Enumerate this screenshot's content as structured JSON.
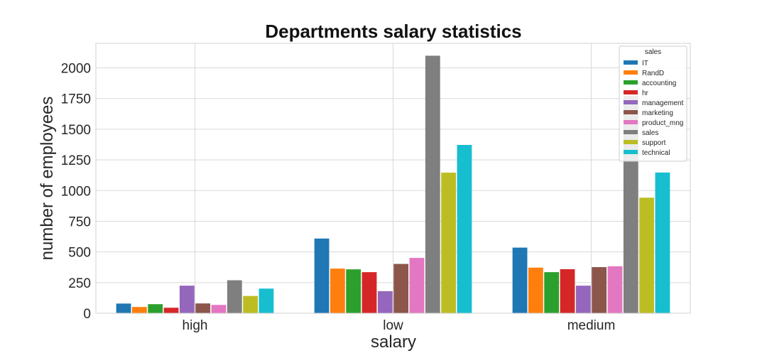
{
  "chart_data": {
    "type": "bar",
    "title": "Departments salary statistics",
    "xlabel": "salary",
    "ylabel": "number of employees",
    "categories": [
      "high",
      "low",
      "medium"
    ],
    "ylim": [
      0,
      2200
    ],
    "yticks": [
      0,
      250,
      500,
      750,
      1000,
      1250,
      1500,
      1750,
      2000
    ],
    "grid": true,
    "legend_title": "sales",
    "legend_position": "top-right",
    "series": [
      {
        "name": "IT",
        "color": "#1f77b4",
        "values": [
          79,
          609,
          535
        ]
      },
      {
        "name": "RandD",
        "color": "#ff7f0e",
        "values": [
          51,
          364,
          372
        ]
      },
      {
        "name": "accounting",
        "color": "#2ca02c",
        "values": [
          74,
          358,
          335
        ]
      },
      {
        "name": "hr",
        "color": "#d62728",
        "values": [
          45,
          335,
          359
        ]
      },
      {
        "name": "management",
        "color": "#9467bd",
        "values": [
          225,
          180,
          225
        ]
      },
      {
        "name": "marketing",
        "color": "#8c564b",
        "values": [
          80,
          402,
          376
        ]
      },
      {
        "name": "product_mng",
        "color": "#e377c2",
        "values": [
          68,
          451,
          383
        ]
      },
      {
        "name": "sales",
        "color": "#7f7f7f",
        "values": [
          269,
          2099,
          1772
        ]
      },
      {
        "name": "support",
        "color": "#bcbd22",
        "values": [
          141,
          1146,
          942
        ]
      },
      {
        "name": "technical",
        "color": "#17becf",
        "values": [
          201,
          1372,
          1147
        ]
      }
    ]
  }
}
